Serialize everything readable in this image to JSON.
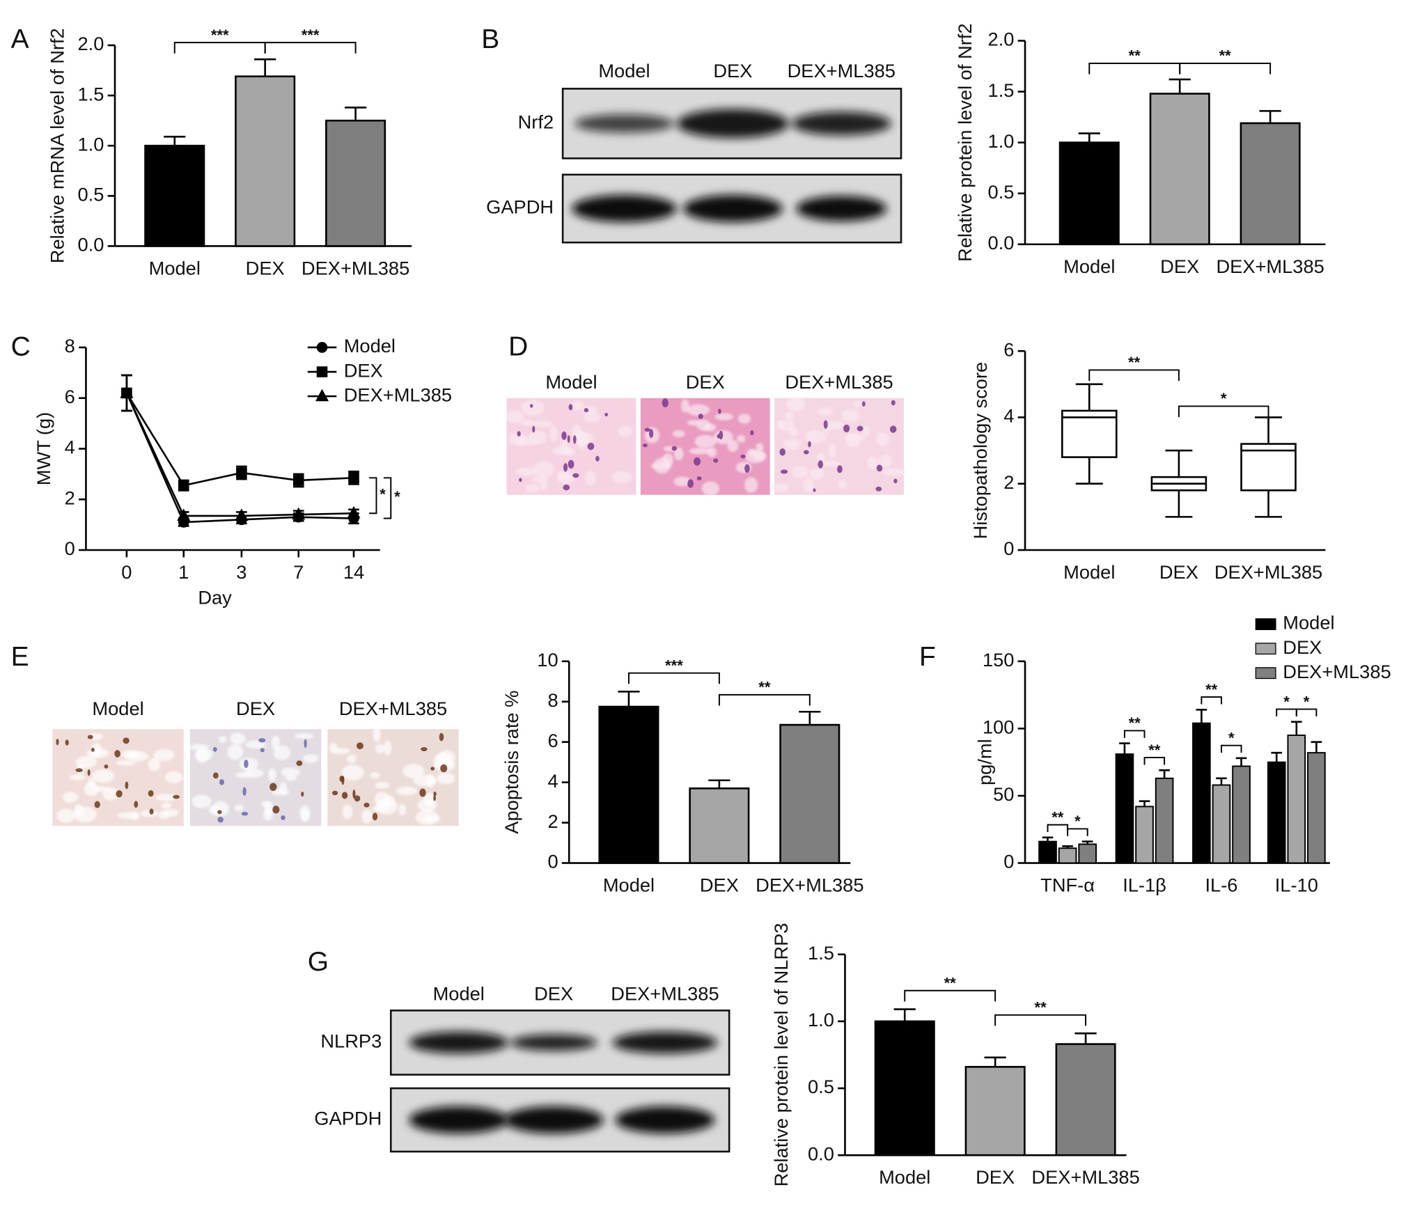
{
  "chart_data": [
    {
      "type": "bar",
      "panel": "A",
      "ylabel": "Relative mRNA level of Nrf2",
      "categories": [
        "Model",
        "DEX",
        "DEX+ML385"
      ],
      "values": [
        1.0,
        1.69,
        1.25
      ],
      "errors": [
        0.09,
        0.17,
        0.13
      ],
      "colors": [
        "#000000",
        "#a6a6a6",
        "#7f7f7f"
      ],
      "ylim": [
        0,
        2
      ],
      "yticks": [
        {
          "value": 0,
          "label": "0.0"
        },
        0.5,
        {
          "value": 1,
          "label": "1.0"
        },
        1.5,
        {
          "value": 2,
          "label": "2.0"
        }
      ],
      "significance": [
        {
          "between": [
            0,
            1
          ],
          "label": "***"
        },
        {
          "between": [
            1,
            2
          ],
          "label": "***"
        }
      ]
    },
    {
      "type": "bar",
      "ylabel": "Relative protein level of Nrf2",
      "categories": [
        "Model",
        "DEX",
        "DEX+ML385"
      ],
      "values": [
        1.0,
        1.48,
        1.19
      ],
      "errors": [
        0.09,
        0.14,
        0.12
      ],
      "colors": [
        "#000000",
        "#a6a6a6",
        "#7f7f7f"
      ],
      "ylim": [
        0,
        2
      ],
      "yticks": [
        {
          "value": 0,
          "label": "0.0"
        },
        0.5,
        {
          "value": 1,
          "label": "1.0"
        },
        1.5,
        {
          "value": 2,
          "label": "2.0"
        }
      ],
      "significance": [
        {
          "between": [
            0,
            1
          ],
          "label": "**"
        },
        {
          "between": [
            1,
            2
          ],
          "label": "**"
        }
      ]
    },
    {
      "type": "line",
      "panel": "C",
      "ylabel": "MWT (g)",
      "xlabel": "Day",
      "categories": [
        "0",
        "1",
        "3",
        "7",
        "14"
      ],
      "ylim": [
        0,
        8
      ],
      "yticks": [
        0,
        2,
        4,
        6,
        8
      ],
      "series": [
        {
          "name": "Model",
          "marker": "circle",
          "color": "#000000",
          "values": [
            6.2,
            1.1,
            1.2,
            1.3,
            1.25
          ],
          "errors": [
            0.7,
            0.15,
            0.15,
            0.15,
            0.2
          ]
        },
        {
          "name": "DEX",
          "marker": "square",
          "color": "#000000",
          "values": [
            6.2,
            2.55,
            3.05,
            2.75,
            2.85
          ],
          "errors": [
            0.7,
            0.2,
            0.25,
            0.25,
            0.25
          ]
        },
        {
          "name": "DEX+ML385",
          "marker": "triangle",
          "color": "#000000",
          "values": [
            6.2,
            1.35,
            1.35,
            1.4,
            1.45
          ],
          "errors": [
            0.7,
            0.15,
            0.15,
            0.15,
            0.15
          ]
        }
      ],
      "significance": [
        {
          "between": [
            1,
            2
          ],
          "label": "*"
        },
        {
          "between": [
            1,
            0
          ],
          "label": "*"
        }
      ]
    },
    {
      "type": "box",
      "ylabel": "Histopathology score",
      "categories": [
        "Model",
        "DEX",
        "DEX+ML385"
      ],
      "ylim": [
        0,
        6
      ],
      "yticks": [
        0,
        2,
        4,
        6
      ],
      "boxes": [
        {
          "min": 2,
          "q1": 2.8,
          "median": 4.0,
          "q3": 4.2,
          "max": 5
        },
        {
          "min": 1,
          "q1": 1.8,
          "median": 2.0,
          "q3": 2.2,
          "max": 3
        },
        {
          "min": 1,
          "q1": 1.8,
          "median": 3.0,
          "q3": 3.2,
          "max": 4
        }
      ],
      "significance": [
        {
          "between": [
            0,
            1
          ],
          "label": "**"
        },
        {
          "between": [
            1,
            2
          ],
          "label": "*"
        }
      ]
    },
    {
      "type": "bar",
      "ylabel": "Apoptosis rate %",
      "categories": [
        "Model",
        "DEX",
        "DEX+ML385"
      ],
      "values": [
        7.75,
        3.7,
        6.85
      ],
      "errors": [
        0.75,
        0.4,
        0.65
      ],
      "colors": [
        "#000000",
        "#a6a6a6",
        "#7f7f7f"
      ],
      "ylim": [
        0,
        10
      ],
      "yticks": [
        0,
        2,
        4,
        6,
        8,
        10
      ],
      "significance": [
        {
          "between": [
            0,
            1
          ],
          "label": "***"
        },
        {
          "between": [
            1,
            2
          ],
          "label": "**"
        }
      ]
    },
    {
      "type": "grouped_bar",
      "panel": "F",
      "ylabel": "pg/ml",
      "categories": [
        "TNF-α",
        "IL-1β",
        "IL-6",
        "IL-10"
      ],
      "ylim": [
        0,
        150
      ],
      "yticks": [
        0,
        50,
        100,
        150
      ],
      "series": [
        {
          "name": "Model",
          "color": "#000000",
          "values": [
            16,
            81,
            104,
            75
          ],
          "errors": [
            3,
            8,
            10,
            7
          ]
        },
        {
          "name": "DEX",
          "color": "#a6a6a6",
          "values": [
            11,
            42,
            58,
            95
          ],
          "errors": [
            1.5,
            4,
            5,
            10
          ]
        },
        {
          "name": "DEX+ML385",
          "color": "#7f7f7f",
          "values": [
            14,
            63,
            72,
            82
          ],
          "errors": [
            2,
            6,
            6,
            8
          ]
        }
      ],
      "significance": [
        {
          "group": 0,
          "between": [
            0,
            1
          ],
          "label": "**"
        },
        {
          "group": 0,
          "between": [
            1,
            2
          ],
          "label": "*"
        },
        {
          "group": 1,
          "between": [
            0,
            1
          ],
          "label": "**"
        },
        {
          "group": 1,
          "between": [
            1,
            2
          ],
          "label": "**"
        },
        {
          "group": 2,
          "between": [
            0,
            1
          ],
          "label": "**"
        },
        {
          "group": 2,
          "between": [
            1,
            2
          ],
          "label": "*"
        },
        {
          "group": 3,
          "between": [
            0,
            1
          ],
          "label": "*"
        },
        {
          "group": 3,
          "between": [
            1,
            2
          ],
          "label": "*"
        }
      ]
    },
    {
      "type": "bar",
      "ylabel": "Relative protein level of NLRP3",
      "categories": [
        "Model",
        "DEX",
        "DEX+ML385"
      ],
      "values": [
        1.0,
        0.66,
        0.83
      ],
      "errors": [
        0.09,
        0.07,
        0.08
      ],
      "colors": [
        "#000000",
        "#a6a6a6",
        "#7f7f7f"
      ],
      "ylim": [
        0,
        1.5
      ],
      "yticks": [
        {
          "value": 0,
          "label": "0.0"
        },
        0.5,
        {
          "value": 1,
          "label": "1.0"
        },
        1.5
      ],
      "significance": [
        {
          "between": [
            0,
            1
          ],
          "label": "**"
        },
        {
          "between": [
            1,
            2
          ],
          "label": "**"
        }
      ]
    }
  ],
  "blots": [
    {
      "panel": "B",
      "lanes": [
        "Model",
        "DEX",
        "DEX+ML385"
      ],
      "rows": [
        "Nrf2",
        "GAPDH"
      ]
    },
    {
      "panel": "G",
      "lanes": [
        "Model",
        "DEX",
        "DEX+ML385"
      ],
      "rows": [
        "NLRP3",
        "GAPDH"
      ]
    }
  ],
  "micrographs": [
    {
      "panel": "D",
      "lanes": [
        "Model",
        "DEX",
        "DEX+ML385"
      ]
    },
    {
      "panel": "E",
      "lanes": [
        "Model",
        "DEX",
        "DEX+ML385"
      ]
    }
  ]
}
